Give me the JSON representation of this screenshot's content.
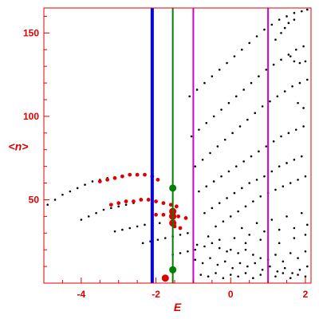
{
  "chart_data": {
    "type": "scatter",
    "xlabel": "E",
    "ylabel": "<n>",
    "xlim": [
      -5.0,
      2.15
    ],
    "ylim": [
      0,
      165
    ],
    "x_ticks": [
      -4,
      -2,
      0,
      2
    ],
    "y_ticks": [
      50,
      100,
      150
    ],
    "x_tick_labels": [
      "-4",
      "-2",
      "0",
      "2"
    ],
    "y_tick_labels": [
      "50",
      "100",
      "150"
    ],
    "grid": false,
    "vertical_lines": [
      {
        "x": -2.1,
        "color": "#0000ff"
      },
      {
        "x": -1.55,
        "color": "#008000"
      },
      {
        "x": -1.0,
        "color": "#d000d0"
      },
      {
        "x": 1.0,
        "color": "#d000d0"
      }
    ],
    "series": [
      {
        "color": "#000000",
        "points": [
          [
            -4.9,
            47
          ],
          [
            -4.7,
            50
          ],
          [
            -4.5,
            53
          ],
          [
            -4.3,
            55
          ],
          [
            -4.1,
            57
          ],
          [
            -3.9,
            59
          ],
          [
            -3.7,
            61
          ],
          [
            -3.5,
            62
          ],
          [
            -3.3,
            63
          ],
          [
            -4.0,
            38
          ],
          [
            -3.8,
            40
          ],
          [
            -3.6,
            42
          ],
          [
            -3.4,
            44
          ],
          [
            -3.2,
            45
          ],
          [
            -3.0,
            46
          ],
          [
            -2.8,
            47
          ],
          [
            -2.6,
            48
          ],
          [
            -3.1,
            31
          ],
          [
            -2.9,
            32
          ],
          [
            -2.7,
            33
          ],
          [
            -2.5,
            34
          ],
          [
            -2.3,
            35
          ],
          [
            -2.1,
            36
          ],
          [
            -1.9,
            36
          ],
          [
            -2.35,
            24
          ],
          [
            -2.15,
            25
          ],
          [
            -1.95,
            26
          ],
          [
            -1.75,
            27
          ],
          [
            -1.55,
            28
          ],
          [
            -1.35,
            29
          ],
          [
            -1.15,
            30
          ],
          [
            -1.55,
            17
          ],
          [
            -1.35,
            18
          ],
          [
            -1.15,
            19
          ],
          [
            -0.95,
            20
          ],
          [
            -1.1,
            112
          ],
          [
            -0.9,
            116
          ],
          [
            -0.7,
            120
          ],
          [
            -0.5,
            124
          ],
          [
            -0.3,
            128
          ],
          [
            -0.1,
            132
          ],
          [
            0.1,
            136
          ],
          [
            0.3,
            140
          ],
          [
            0.5,
            144
          ],
          [
            0.7,
            148
          ],
          [
            0.9,
            152
          ],
          [
            1.1,
            155
          ],
          [
            1.3,
            158
          ],
          [
            1.5,
            160
          ],
          [
            1.7,
            162
          ],
          [
            1.9,
            163
          ],
          [
            2.05,
            164
          ],
          [
            -1.05,
            88
          ],
          [
            -0.85,
            92
          ],
          [
            -0.65,
            96
          ],
          [
            -0.45,
            100
          ],
          [
            -0.25,
            104
          ],
          [
            -0.05,
            108
          ],
          [
            0.15,
            112
          ],
          [
            0.35,
            116
          ],
          [
            0.55,
            120
          ],
          [
            0.75,
            124
          ],
          [
            0.95,
            128
          ],
          [
            1.15,
            131
          ],
          [
            1.35,
            134
          ],
          [
            1.55,
            137
          ],
          [
            1.75,
            140
          ],
          [
            1.95,
            142
          ],
          [
            -0.95,
            70
          ],
          [
            -0.75,
            74
          ],
          [
            -0.55,
            78
          ],
          [
            -0.35,
            82
          ],
          [
            -0.15,
            86
          ],
          [
            0.05,
            90
          ],
          [
            0.25,
            94
          ],
          [
            0.45,
            98
          ],
          [
            0.65,
            102
          ],
          [
            0.85,
            106
          ],
          [
            1.05,
            109
          ],
          [
            1.25,
            112
          ],
          [
            1.45,
            115
          ],
          [
            1.65,
            118
          ],
          [
            1.85,
            120
          ],
          [
            2.05,
            122
          ],
          [
            -0.85,
            55
          ],
          [
            -0.65,
            58
          ],
          [
            -0.45,
            61
          ],
          [
            -0.25,
            64
          ],
          [
            -0.05,
            67
          ],
          [
            0.15,
            70
          ],
          [
            0.35,
            73
          ],
          [
            0.55,
            76
          ],
          [
            0.75,
            79
          ],
          [
            0.95,
            82
          ],
          [
            1.15,
            85
          ],
          [
            1.35,
            88
          ],
          [
            1.55,
            90
          ],
          [
            1.75,
            92
          ],
          [
            1.95,
            94
          ],
          [
            -0.7,
            42
          ],
          [
            -0.5,
            45
          ],
          [
            -0.3,
            48
          ],
          [
            -0.1,
            51
          ],
          [
            0.1,
            54
          ],
          [
            0.3,
            57
          ],
          [
            0.5,
            60
          ],
          [
            0.7,
            62
          ],
          [
            0.9,
            64
          ],
          [
            1.1,
            67
          ],
          [
            1.3,
            70
          ],
          [
            1.5,
            72
          ],
          [
            1.7,
            74
          ],
          [
            1.9,
            76
          ],
          [
            -0.4,
            34
          ],
          [
            -0.2,
            37
          ],
          [
            0.0,
            40
          ],
          [
            0.2,
            43
          ],
          [
            0.4,
            46
          ],
          [
            0.6,
            49
          ],
          [
            0.8,
            52
          ],
          [
            1.0,
            54
          ],
          [
            1.2,
            56
          ],
          [
            1.4,
            58
          ],
          [
            1.6,
            60
          ],
          [
            1.8,
            62
          ],
          [
            2.0,
            64
          ],
          [
            1.2,
            146
          ],
          [
            1.35,
            150
          ],
          [
            1.45,
            153
          ],
          [
            1.55,
            156
          ],
          [
            1.7,
            158
          ],
          [
            1.6,
            136
          ],
          [
            1.7,
            133
          ],
          [
            1.85,
            132
          ],
          [
            2.0,
            133
          ],
          [
            1.8,
            108
          ],
          [
            1.95,
            105
          ],
          [
            -0.9,
            23
          ],
          [
            -0.7,
            22
          ],
          [
            -0.5,
            24
          ],
          [
            -0.3,
            21
          ],
          [
            -0.1,
            19
          ],
          [
            0.0,
            20
          ],
          [
            0.2,
            18
          ],
          [
            0.4,
            20
          ],
          [
            0.6,
            17
          ],
          [
            0.8,
            15
          ],
          [
            1.0,
            14
          ],
          [
            1.2,
            17
          ],
          [
            1.4,
            13
          ],
          [
            1.6,
            18
          ],
          [
            1.8,
            15
          ],
          [
            2.0,
            19
          ],
          [
            -0.95,
            14
          ],
          [
            -0.75,
            12
          ],
          [
            -0.55,
            15
          ],
          [
            -0.35,
            11
          ],
          [
            -0.15,
            13
          ],
          [
            0.05,
            9
          ],
          [
            0.25,
            12
          ],
          [
            0.45,
            10
          ],
          [
            0.65,
            12
          ],
          [
            0.85,
            8
          ],
          [
            1.05,
            10
          ],
          [
            1.25,
            7
          ],
          [
            1.45,
            9
          ],
          [
            1.65,
            6
          ],
          [
            1.85,
            8
          ],
          [
            2.05,
            10
          ],
          [
            -0.8,
            5
          ],
          [
            -0.6,
            4
          ],
          [
            -0.4,
            6
          ],
          [
            -0.2,
            3
          ],
          [
            0.0,
            5
          ],
          [
            0.2,
            4
          ],
          [
            0.4,
            6
          ],
          [
            0.6,
            3
          ],
          [
            0.8,
            5
          ],
          [
            1.2,
            4
          ],
          [
            1.4,
            6
          ],
          [
            1.6,
            3
          ],
          [
            1.8,
            5
          ],
          [
            2.0,
            4
          ],
          [
            -0.3,
            26
          ],
          [
            0.1,
            27
          ],
          [
            0.5,
            29
          ],
          [
            0.9,
            31
          ],
          [
            1.3,
            32
          ],
          [
            1.7,
            33
          ],
          [
            2.05,
            35
          ],
          [
            0.3,
            33
          ],
          [
            0.7,
            36
          ],
          [
            1.1,
            38
          ],
          [
            1.5,
            40
          ],
          [
            1.9,
            42
          ],
          [
            -0.6,
            28
          ],
          [
            0.4,
            24
          ],
          [
            0.8,
            26
          ],
          [
            1.3,
            24
          ],
          [
            1.7,
            27
          ],
          [
            2.0,
            29
          ]
        ]
      },
      {
        "color": "#e00000",
        "points": [
          [
            -3.5,
            61
          ],
          [
            -3.3,
            62
          ],
          [
            -3.1,
            63
          ],
          [
            -2.9,
            64
          ],
          [
            -2.7,
            65
          ],
          [
            -2.5,
            65
          ],
          [
            -2.3,
            65
          ],
          [
            -2.1,
            64
          ],
          [
            -1.95,
            62
          ],
          [
            -3.2,
            47
          ],
          [
            -3.0,
            48
          ],
          [
            -2.8,
            49
          ],
          [
            -2.6,
            49
          ],
          [
            -2.4,
            50
          ],
          [
            -2.2,
            50
          ],
          [
            -2.0,
            49
          ],
          [
            -1.8,
            48
          ],
          [
            -1.6,
            47
          ],
          [
            -1.45,
            46
          ],
          [
            -2.0,
            41
          ],
          [
            -1.8,
            41
          ],
          [
            -1.6,
            40
          ],
          [
            -1.4,
            40
          ],
          [
            -1.2,
            39
          ],
          [
            -1.5,
            34
          ],
          [
            -1.35,
            33
          ]
        ]
      },
      {
        "color": "#e00000",
        "marker": "large",
        "points": [
          [
            -1.55,
            40
          ],
          [
            -1.55,
            36
          ],
          [
            -1.55,
            43
          ],
          [
            -1.75,
            3
          ]
        ]
      },
      {
        "color": "#008000",
        "marker": "large",
        "points": [
          [
            -1.55,
            57
          ],
          [
            -1.55,
            8
          ]
        ]
      }
    ]
  }
}
